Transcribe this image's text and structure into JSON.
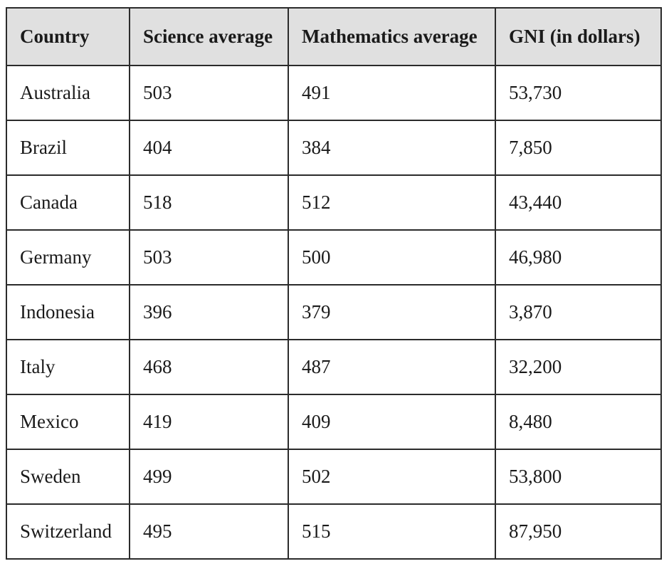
{
  "table": {
    "headers": [
      "Country",
      "Science average",
      "Mathematics average",
      "GNI (in dollars)"
    ],
    "rows": [
      [
        "Australia",
        "503",
        "491",
        "53,730"
      ],
      [
        "Brazil",
        "404",
        "384",
        "7,850"
      ],
      [
        "Canada",
        "518",
        "512",
        "43,440"
      ],
      [
        "Germany",
        "503",
        "500",
        "46,980"
      ],
      [
        "Indonesia",
        "396",
        "379",
        "3,870"
      ],
      [
        "Italy",
        "468",
        "487",
        "32,200"
      ],
      [
        "Mexico",
        "419",
        "409",
        "8,480"
      ],
      [
        "Sweden",
        "499",
        "502",
        "53,800"
      ],
      [
        "Switzerland",
        "495",
        "515",
        "87,950"
      ]
    ]
  },
  "colors": {
    "header_background": "#e0e0e0",
    "border": "#2b2b2b"
  }
}
